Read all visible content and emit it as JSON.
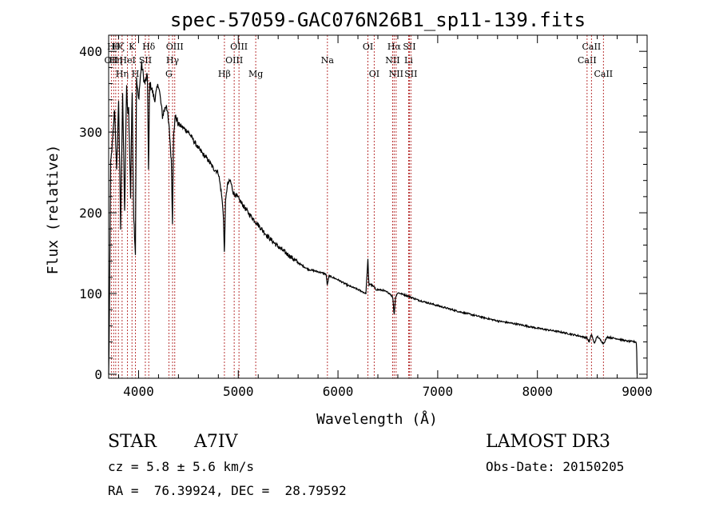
{
  "chart_data": {
    "type": "line",
    "title": "spec-57059-GAC076N26B1_sp11-139.fits",
    "xlabel": "Wavelength (Å)",
    "ylabel": "Flux (relative)",
    "xlim": [
      3700,
      9100
    ],
    "ylim": [
      -5,
      420
    ],
    "xticks": [
      4000,
      5000,
      6000,
      7000,
      8000,
      9000
    ],
    "yticks": [
      0,
      100,
      200,
      300,
      400
    ],
    "grid": false,
    "spectrum": {
      "x": [
        3700,
        3705,
        3720,
        3740,
        3760,
        3780,
        3800,
        3820,
        3840,
        3860,
        3880,
        3890,
        3900,
        3920,
        3935,
        3950,
        3968,
        3980,
        4000,
        4030,
        4060,
        4090,
        4101,
        4110,
        4130,
        4160,
        4200,
        4240,
        4280,
        4310,
        4330,
        4340,
        4350,
        4370,
        4400,
        4450,
        4500,
        4550,
        4600,
        4650,
        4700,
        4750,
        4800,
        4830,
        4850,
        4861,
        4870,
        4890,
        4920,
        4950,
        5000,
        5100,
        5200,
        5300,
        5400,
        5500,
        5600,
        5700,
        5800,
        5880,
        5893,
        5910,
        6000,
        6100,
        6200,
        6280,
        6300,
        6310,
        6320,
        6363,
        6380,
        6450,
        6520,
        6550,
        6563,
        6576,
        6600,
        6700,
        6800,
        7000,
        7200,
        7400,
        7600,
        7800,
        8000,
        8200,
        8400,
        8498,
        8520,
        8542,
        8570,
        8600,
        8662,
        8700,
        8800,
        8900,
        8990,
        8995,
        9000
      ],
      "y": [
        0,
        40,
        260,
        290,
        330,
        250,
        340,
        180,
        350,
        200,
        360,
        320,
        330,
        220,
        355,
        200,
        150,
        365,
        340,
        385,
        360,
        370,
        240,
        360,
        355,
        340,
        360,
        320,
        335,
        300,
        260,
        185,
        300,
        320,
        310,
        305,
        300,
        290,
        280,
        272,
        265,
        255,
        250,
        225,
        200,
        145,
        210,
        235,
        240,
        225,
        218,
        200,
        185,
        170,
        158,
        148,
        138,
        130,
        127,
        124,
        110,
        122,
        117,
        110,
        105,
        100,
        142,
        110,
        112,
        108,
        105,
        104,
        100,
        95,
        73,
        95,
        101,
        97,
        92,
        85,
        78,
        72,
        66,
        62,
        57,
        53,
        48,
        45,
        40,
        50,
        38,
        47,
        38,
        46,
        44,
        41,
        40,
        35,
        0
      ]
    },
    "lines": [
      {
        "wl": 3727,
        "label": "OII",
        "row": 1
      },
      {
        "wl": 3750,
        "label": "Hθ",
        "row": 0
      },
      {
        "wl": 3771,
        "label": "Hη",
        "row": 1
      },
      {
        "wl": 3798,
        "label": "Hζ",
        "row": 0
      },
      {
        "wl": 3835,
        "label": "Hη",
        "row": 2
      },
      {
        "wl": 3889,
        "label": "HeI",
        "row": 1
      },
      {
        "wl": 3934,
        "label": "K",
        "row": 0
      },
      {
        "wl": 3969,
        "label": "H",
        "row": 2
      },
      {
        "wl": 4068,
        "label": "SII",
        "row": 1
      },
      {
        "wl": 4102,
        "label": "Hδ",
        "row": 0
      },
      {
        "wl": 4304,
        "label": "G",
        "row": 2
      },
      {
        "wl": 4341,
        "label": "Hγ",
        "row": 1
      },
      {
        "wl": 4363,
        "label": "OIII",
        "row": 0
      },
      {
        "wl": 4861,
        "label": "Hβ",
        "row": 2
      },
      {
        "wl": 4959,
        "label": "OIII",
        "row": 1
      },
      {
        "wl": 5007,
        "label": "OIII",
        "row": 0
      },
      {
        "wl": 5175,
        "label": "Mg",
        "row": 2
      },
      {
        "wl": 5894,
        "label": "Na",
        "row": 1
      },
      {
        "wl": 6300,
        "label": "OI",
        "row": 0
      },
      {
        "wl": 6363,
        "label": "OI",
        "row": 2
      },
      {
        "wl": 6548,
        "label": "NII",
        "row": 1
      },
      {
        "wl": 6563,
        "label": "Hα",
        "row": 0
      },
      {
        "wl": 6583,
        "label": "NII",
        "row": 2
      },
      {
        "wl": 6708,
        "label": "Li",
        "row": 1
      },
      {
        "wl": 6716,
        "label": "SII",
        "row": 0
      },
      {
        "wl": 6731,
        "label": "SII",
        "row": 2
      },
      {
        "wl": 8498,
        "label": "CaII",
        "row": 1
      },
      {
        "wl": 8542,
        "label": "CaII",
        "row": 0
      },
      {
        "wl": 8662,
        "label": "CaII",
        "row": 2
      }
    ]
  },
  "info": {
    "object_class": "STAR",
    "subclass": "A7IV",
    "cz": "cz = 5.8 ± 5.6 km/s",
    "coords": "RA =  76.39924, DEC =  28.79592",
    "survey": "LAMOST DR3",
    "obs_date": "Obs-Date: 20150205"
  },
  "colors": {
    "spectrum": "#000000",
    "line_markers": "#b22222"
  }
}
